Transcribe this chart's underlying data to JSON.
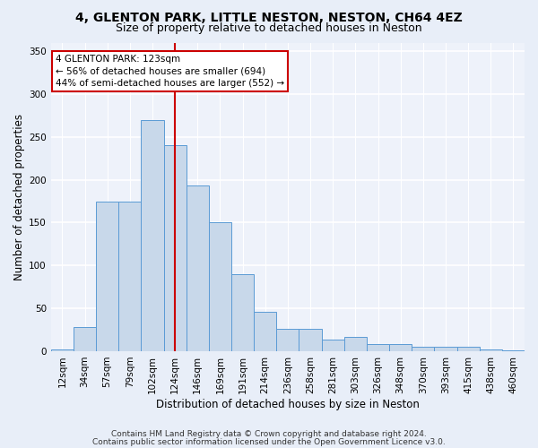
{
  "title1": "4, GLENTON PARK, LITTLE NESTON, NESTON, CH64 4EZ",
  "title2": "Size of property relative to detached houses in Neston",
  "xlabel": "Distribution of detached houses by size in Neston",
  "ylabel": "Number of detached properties",
  "categories": [
    "12sqm",
    "34sqm",
    "57sqm",
    "79sqm",
    "102sqm",
    "124sqm",
    "146sqm",
    "169sqm",
    "191sqm",
    "214sqm",
    "236sqm",
    "258sqm",
    "281sqm",
    "303sqm",
    "326sqm",
    "348sqm",
    "370sqm",
    "393sqm",
    "415sqm",
    "438sqm",
    "460sqm"
  ],
  "values": [
    2,
    28,
    175,
    175,
    270,
    240,
    193,
    150,
    90,
    46,
    26,
    26,
    14,
    17,
    8,
    8,
    5,
    5,
    5,
    2,
    1
  ],
  "bar_color": "#c8d8ea",
  "bar_edge_color": "#5b9bd5",
  "highlight_index": 5,
  "marker_color": "#cc0000",
  "annotation_text": "4 GLENTON PARK: 123sqm\n← 56% of detached houses are smaller (694)\n44% of semi-detached houses are larger (552) →",
  "annotation_box_facecolor": "white",
  "annotation_box_edgecolor": "#cc0000",
  "ylim": [
    0,
    360
  ],
  "yticks": [
    0,
    50,
    100,
    150,
    200,
    250,
    300,
    350
  ],
  "footer1": "Contains HM Land Registry data © Crown copyright and database right 2024.",
  "footer2": "Contains public sector information licensed under the Open Government Licence v3.0.",
  "bg_color": "#e8eef8",
  "plot_bg_color": "#eef2fa",
  "grid_color": "#ffffff",
  "title1_fontsize": 10,
  "title2_fontsize": 9,
  "xlabel_fontsize": 8.5,
  "ylabel_fontsize": 8.5,
  "tick_fontsize": 7.5,
  "footer_fontsize": 6.5
}
